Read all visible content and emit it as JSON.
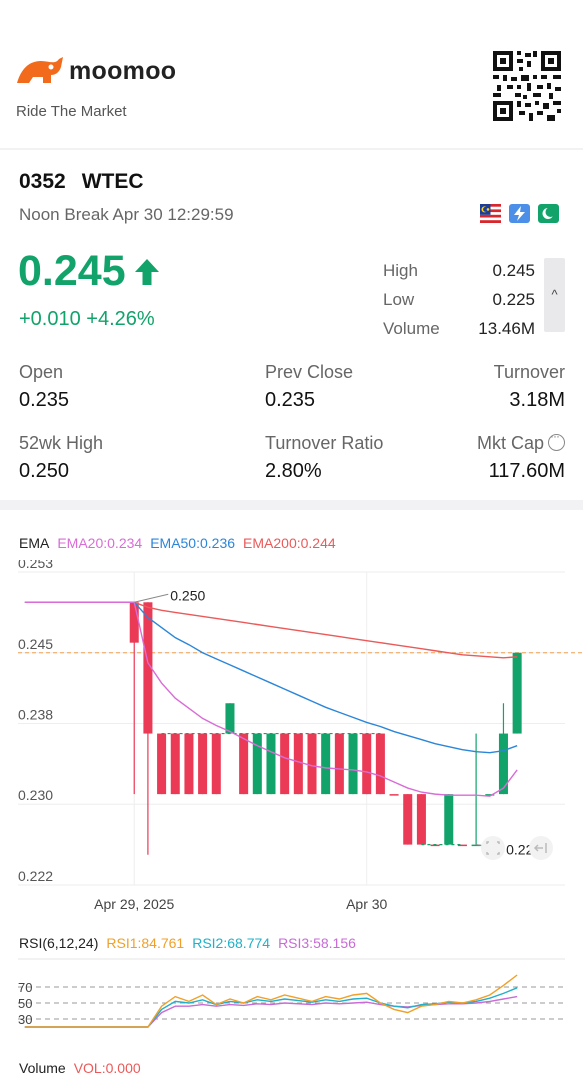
{
  "header": {
    "brand": "moomoo",
    "tagline": "Ride The Market",
    "icons": {
      "logo": "moomoo-bull-logo-icon",
      "qr": "qr-code-icon"
    }
  },
  "quote": {
    "code": "0352",
    "name": "WTEC",
    "status": "Noon Break Apr 30 12:29:59",
    "price": "0.245",
    "change": "+0.010 +4.26%",
    "icons": [
      "malaysia-flag-icon",
      "lightning-icon",
      "moon-icon"
    ],
    "colors": {
      "up": "#12a36a",
      "down": "#ea3a55"
    }
  },
  "summary": {
    "high_label": "High",
    "high": "0.245",
    "low_label": "Low",
    "low": "0.225",
    "volume_label": "Volume",
    "volume": "13.46M",
    "collapse_glyph": "^"
  },
  "stats": {
    "open_label": "Open",
    "open": "0.235",
    "prev_close_label": "Prev Close",
    "prev_close": "0.235",
    "turnover_label": "Turnover",
    "turnover": "3.18M",
    "wk52_high_label": "52wk High",
    "wk52_high": "0.250",
    "turnover_ratio_label": "Turnover Ratio",
    "turnover_ratio": "2.80%",
    "mkt_cap_label": "Mkt Cap",
    "mkt_cap": "117.60M"
  },
  "ema": {
    "label": "EMA",
    "ema20": "EMA20:0.234",
    "ema50": "EMA50:0.236",
    "ema200": "EMA200:0.244",
    "colors": {
      "ema20": "#d96cd6",
      "ema50": "#2b86d9",
      "ema200": "#ea5a5a"
    }
  },
  "rsi": {
    "label": "RSI(6,12,24)",
    "rsi1": "RSI1:84.761",
    "rsi2": "RSI2:68.774",
    "rsi3": "RSI3:58.156",
    "colors": {
      "rsi1": "#f0a028",
      "rsi2": "#21b0c8",
      "rsi3": "#c86bd6"
    },
    "levels": [
      "70",
      "50",
      "30"
    ],
    "level_values": [
      70,
      50,
      30
    ]
  },
  "volume": {
    "label": "Volume",
    "vol": "VOL:0.000",
    "color": "#ea5a5a"
  },
  "chart_data": {
    "type": "candlestick",
    "y_ticks": [
      "0.253",
      "0.245",
      "0.238",
      "0.230",
      "0.222"
    ],
    "y_tick_values": [
      0.253,
      0.245,
      0.238,
      0.23,
      0.222
    ],
    "ylim": [
      0.222,
      0.253
    ],
    "x_ticks": [
      "Apr 29, 2025",
      "Apr 30"
    ],
    "x_tick_index": [
      8,
      25
    ],
    "n_slots": 40,
    "current_price": 0.245,
    "high_annotation": "0.250",
    "low_annotation": "0.225",
    "candles": [
      {
        "i": 8,
        "o": 0.25,
        "c": 0.246,
        "h": 0.25,
        "l": 0.231
      },
      {
        "i": 9,
        "o": 0.25,
        "c": 0.237,
        "h": 0.25,
        "l": 0.225
      },
      {
        "i": 10,
        "o": 0.237,
        "c": 0.231,
        "h": 0.237,
        "l": 0.231
      },
      {
        "i": 11,
        "o": 0.237,
        "c": 0.231,
        "h": 0.237,
        "l": 0.231
      },
      {
        "i": 12,
        "o": 0.237,
        "c": 0.231,
        "h": 0.237,
        "l": 0.231
      },
      {
        "i": 13,
        "o": 0.237,
        "c": 0.231,
        "h": 0.237,
        "l": 0.231
      },
      {
        "i": 14,
        "o": 0.237,
        "c": 0.231,
        "h": 0.237,
        "l": 0.231
      },
      {
        "i": 15,
        "o": 0.237,
        "c": 0.24,
        "h": 0.24,
        "l": 0.237
      },
      {
        "i": 16,
        "o": 0.237,
        "c": 0.231,
        "h": 0.237,
        "l": 0.231
      },
      {
        "i": 17,
        "o": 0.231,
        "c": 0.237,
        "h": 0.237,
        "l": 0.231
      },
      {
        "i": 18,
        "o": 0.231,
        "c": 0.237,
        "h": 0.237,
        "l": 0.231
      },
      {
        "i": 19,
        "o": 0.237,
        "c": 0.231,
        "h": 0.237,
        "l": 0.231
      },
      {
        "i": 20,
        "o": 0.237,
        "c": 0.231,
        "h": 0.237,
        "l": 0.231
      },
      {
        "i": 21,
        "o": 0.237,
        "c": 0.231,
        "h": 0.237,
        "l": 0.231
      },
      {
        "i": 22,
        "o": 0.231,
        "c": 0.237,
        "h": 0.237,
        "l": 0.231
      },
      {
        "i": 23,
        "o": 0.237,
        "c": 0.231,
        "h": 0.237,
        "l": 0.231
      },
      {
        "i": 24,
        "o": 0.231,
        "c": 0.237,
        "h": 0.237,
        "l": 0.231
      },
      {
        "i": 25,
        "o": 0.237,
        "c": 0.231,
        "h": 0.237,
        "l": 0.231
      },
      {
        "i": 26,
        "o": 0.237,
        "c": 0.231,
        "h": 0.237,
        "l": 0.231
      },
      {
        "i": 27,
        "o": 0.231,
        "c": 0.231,
        "h": 0.231,
        "l": 0.231
      },
      {
        "i": 28,
        "o": 0.231,
        "c": 0.226,
        "h": 0.231,
        "l": 0.226
      },
      {
        "i": 29,
        "o": 0.231,
        "c": 0.226,
        "h": 0.231,
        "l": 0.226
      },
      {
        "i": 30,
        "o": 0.226,
        "c": 0.226,
        "h": 0.226,
        "l": 0.226
      },
      {
        "i": 31,
        "o": 0.226,
        "c": 0.231,
        "h": 0.231,
        "l": 0.226
      },
      {
        "i": 32,
        "o": 0.226,
        "c": 0.226,
        "h": 0.226,
        "l": 0.226
      },
      {
        "i": 33,
        "o": 0.226,
        "c": 0.226,
        "h": 0.237,
        "l": 0.226
      },
      {
        "i": 34,
        "o": 0.231,
        "c": 0.231,
        "h": 0.231,
        "l": 0.231
      },
      {
        "i": 35,
        "o": 0.231,
        "c": 0.237,
        "h": 0.24,
        "l": 0.231
      },
      {
        "i": 36,
        "o": 0.237,
        "c": 0.245,
        "h": 0.245,
        "l": 0.237
      }
    ],
    "ema20_line": [
      0.25,
      0.25,
      0.25,
      0.25,
      0.25,
      0.25,
      0.25,
      0.25,
      0.25,
      0.244,
      0.242,
      0.2405,
      0.2395,
      0.2385,
      0.2378,
      0.2372,
      0.2365,
      0.2358,
      0.2352,
      0.2346,
      0.2342,
      0.2338,
      0.2336,
      0.2335,
      0.2334,
      0.2332,
      0.2328,
      0.2322,
      0.2316,
      0.2312,
      0.231,
      0.2309,
      0.2309,
      0.2309,
      0.2308,
      0.2316,
      0.2334
    ],
    "ema50_line": [
      0.25,
      0.25,
      0.25,
      0.25,
      0.25,
      0.25,
      0.25,
      0.25,
      0.25,
      0.2485,
      0.2475,
      0.2465,
      0.2458,
      0.245,
      0.2444,
      0.2438,
      0.2432,
      0.2426,
      0.242,
      0.2414,
      0.2408,
      0.2402,
      0.2396,
      0.2391,
      0.2386,
      0.2381,
      0.2377,
      0.2372,
      0.2368,
      0.2364,
      0.236,
      0.2357,
      0.2354,
      0.2352,
      0.2351,
      0.2353,
      0.2358
    ],
    "ema200_line": [
      0.25,
      0.25,
      0.25,
      0.25,
      0.25,
      0.25,
      0.25,
      0.25,
      0.25,
      0.2495,
      0.2492,
      0.249,
      0.2488,
      0.2486,
      0.2484,
      0.2482,
      0.248,
      0.2478,
      0.2476,
      0.2474,
      0.2472,
      0.247,
      0.2468,
      0.2466,
      0.2464,
      0.2462,
      0.246,
      0.2458,
      0.2456,
      0.2454,
      0.2452,
      0.245,
      0.2448,
      0.2447,
      0.2446,
      0.2445,
      0.2446
    ],
    "rsi1_line": [
      20,
      20,
      20,
      20,
      20,
      20,
      20,
      20,
      20,
      20,
      46,
      58,
      52,
      60,
      48,
      55,
      50,
      58,
      54,
      60,
      56,
      52,
      58,
      55,
      60,
      62,
      50,
      42,
      38,
      46,
      48,
      52,
      50,
      54,
      60,
      72,
      85
    ],
    "rsi2_line": [
      20,
      20,
      20,
      20,
      20,
      20,
      20,
      20,
      20,
      20,
      42,
      52,
      50,
      54,
      48,
      52,
      50,
      54,
      52,
      55,
      53,
      51,
      54,
      52,
      55,
      56,
      50,
      46,
      44,
      48,
      49,
      51,
      50,
      52,
      56,
      62,
      69
    ],
    "rsi3_line": [
      20,
      20,
      20,
      20,
      20,
      20,
      20,
      20,
      20,
      20,
      38,
      46,
      46,
      48,
      46,
      48,
      47,
      49,
      48,
      50,
      49,
      48,
      50,
      49,
      50,
      51,
      48,
      46,
      45,
      47,
      48,
      49,
      49,
      50,
      52,
      55,
      58
    ]
  }
}
